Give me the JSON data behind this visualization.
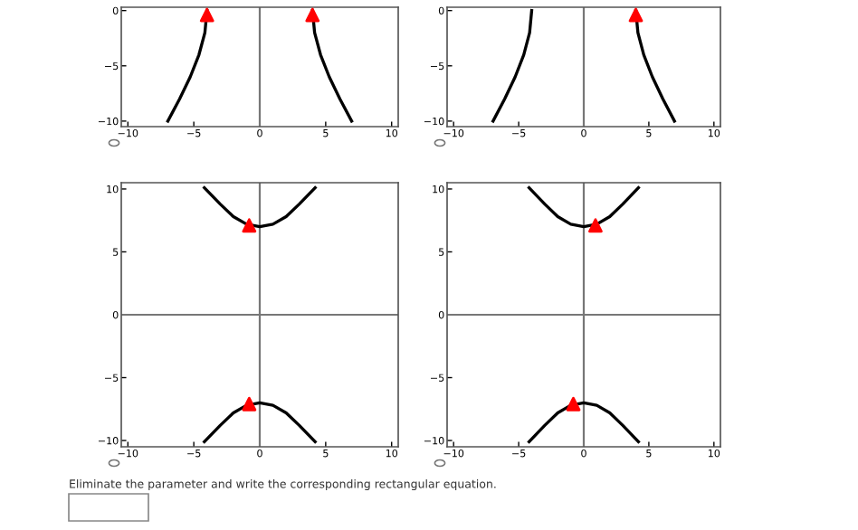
{
  "chart_data": [
    {
      "type": "line",
      "xlim": [
        -10.5,
        10.5
      ],
      "ylim": [
        -10.5,
        0.3
      ],
      "xticks": [
        -10,
        -5,
        0,
        5,
        10
      ],
      "yticks": [
        -10,
        -5,
        0
      ],
      "ref_lines": [
        {
          "axis": "x",
          "value": 0,
          "color": "#777777"
        }
      ],
      "series": [
        {
          "color": "#000000",
          "x": [
            -4,
            -4.16,
            -4.61,
            -5.27,
            -6.08,
            -6.97
          ],
          "values": [
            0,
            -2,
            -4,
            -6,
            -8,
            -10
          ]
        },
        {
          "color": "#000000",
          "x": [
            4,
            4.16,
            4.61,
            5.27,
            6.08,
            6.97
          ],
          "values": [
            0,
            -2,
            -4,
            -6,
            -8,
            -10
          ]
        },
        {
          "type": "scatter",
          "color": "#ff0000",
          "marker": "triangle",
          "x": [
            -4,
            4
          ],
          "values": [
            -0.4,
            -0.4
          ]
        }
      ]
    },
    {
      "type": "line",
      "xlim": [
        -10.5,
        10.5
      ],
      "ylim": [
        -10.5,
        0.3
      ],
      "xticks": [
        -10,
        -5,
        0,
        5,
        10
      ],
      "yticks": [
        -10,
        -5,
        0
      ],
      "ref_lines": [
        {
          "axis": "x",
          "value": 0,
          "color": "#777777"
        }
      ],
      "series": [
        {
          "color": "#000000",
          "x": [
            -4,
            -4.16,
            -4.61,
            -5.27,
            -6.08,
            -6.97
          ],
          "values": [
            0,
            -2,
            -4,
            -6,
            -8,
            -10
          ]
        },
        {
          "color": "#000000",
          "x": [
            4,
            4.16,
            4.61,
            5.27,
            6.08,
            6.97
          ],
          "values": [
            0,
            -2,
            -4,
            -6,
            -8,
            -10
          ]
        },
        {
          "type": "scatter",
          "color": "#ff0000",
          "marker": "triangle",
          "x": [
            4
          ],
          "values": [
            -0.4
          ]
        }
      ]
    },
    {
      "type": "line",
      "xlim": [
        -10.5,
        10.5
      ],
      "ylim": [
        -10.5,
        10.5
      ],
      "xticks": [
        -10,
        -5,
        0,
        5,
        10
      ],
      "yticks": [
        -10,
        -5,
        0,
        5,
        10
      ],
      "ref_lines": [
        {
          "axis": "x",
          "value": 0,
          "color": "#777777"
        },
        {
          "axis": "y",
          "value": 0,
          "color": "#777777"
        }
      ],
      "series": [
        {
          "color": "#000000",
          "x": [
            -4.2,
            -3,
            -2,
            -1,
            0,
            1,
            2,
            3,
            4.2
          ],
          "values": [
            10.1,
            8.8,
            7.8,
            7.2,
            7,
            7.2,
            7.8,
            8.8,
            10.1
          ]
        },
        {
          "color": "#000000",
          "x": [
            -4.2,
            -3,
            -2,
            -1,
            0,
            1,
            2,
            3,
            4.2
          ],
          "values": [
            -10.1,
            -8.8,
            -7.8,
            -7.2,
            -7,
            -7.2,
            -7.8,
            -8.8,
            -10.1
          ]
        },
        {
          "type": "scatter",
          "color": "#ff0000",
          "marker": "triangle",
          "x": [
            -0.8,
            -0.8
          ],
          "values": [
            7.1,
            -7.1
          ]
        }
      ]
    },
    {
      "type": "line",
      "xlim": [
        -10.5,
        10.5
      ],
      "ylim": [
        -10.5,
        10.5
      ],
      "xticks": [
        -10,
        -5,
        0,
        5,
        10
      ],
      "yticks": [
        -10,
        -5,
        0,
        5,
        10
      ],
      "ref_lines": [
        {
          "axis": "x",
          "value": 0,
          "color": "#777777"
        },
        {
          "axis": "y",
          "value": 0,
          "color": "#777777"
        }
      ],
      "annotations": [
        "Eliminate the parameter and write the corresponding rectangular equation."
      ],
      "series": [
        {
          "color": "#000000",
          "x": [
            -4.2,
            -3,
            -2,
            -1,
            0,
            1,
            2,
            3,
            4.2
          ],
          "values": [
            10.1,
            8.8,
            7.8,
            7.2,
            7,
            7.2,
            7.8,
            8.8,
            10.1
          ]
        },
        {
          "color": "#000000",
          "x": [
            -4.2,
            -3,
            -2,
            -1,
            0,
            1,
            2,
            3,
            4.2
          ],
          "values": [
            -10.1,
            -8.8,
            -7.8,
            -7.2,
            -7,
            -7.2,
            -7.8,
            -8.8,
            -10.1
          ]
        },
        {
          "type": "scatter",
          "color": "#ff0000",
          "marker": "triangle",
          "x": [
            0.9,
            -0.8
          ],
          "values": [
            7.1,
            -7.1
          ]
        }
      ]
    }
  ]
}
